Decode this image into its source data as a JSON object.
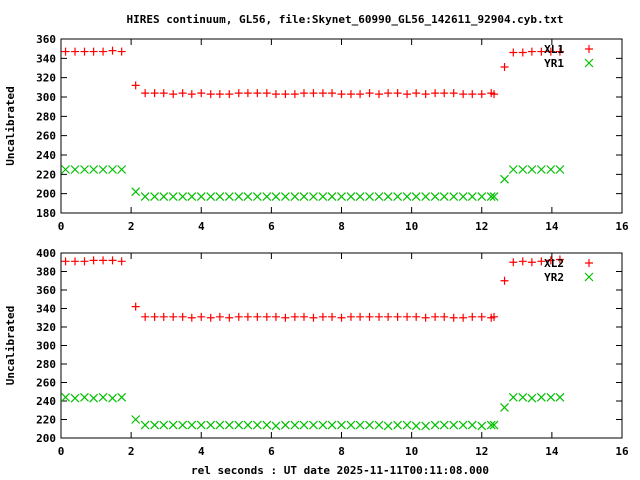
{
  "title": "HIRES continuum, GL56, file:Skynet_60990_GL56_142611_92904.cyb.txt",
  "chart_data": [
    {
      "type": "scatter",
      "ylabel": "Uncalibrated",
      "xlabel": "",
      "xlim": [
        0,
        16
      ],
      "ylim": [
        180,
        360
      ],
      "xticks": [
        "0",
        "2",
        "4",
        "6",
        "8",
        "10",
        "12",
        "14",
        "16"
      ],
      "yticks": [
        "180",
        "200",
        "220",
        "240",
        "260",
        "280",
        "300",
        "320",
        "340",
        "360"
      ],
      "legend_position": "top-right",
      "series": [
        {
          "name": "XL1",
          "color": "#ff0000",
          "marker": "plus",
          "values": [
            347,
            347,
            347,
            347,
            347,
            348,
            347,
            312,
            304,
            304,
            304,
            303,
            304,
            303,
            304,
            303,
            303,
            303,
            304,
            304,
            304,
            304,
            303,
            303,
            303,
            304,
            304,
            304,
            304,
            303,
            303,
            303,
            304,
            303,
            304,
            304,
            303,
            304,
            303,
            304,
            304,
            304,
            303,
            303,
            303,
            304,
            303,
            331,
            346,
            346,
            347,
            347,
            347,
            347
          ]
        },
        {
          "name": "YR1",
          "color": "#00c000",
          "marker": "cross",
          "values": [
            225,
            225,
            225,
            225,
            225,
            225,
            225,
            202,
            197,
            197,
            197,
            197,
            197,
            197,
            197,
            197,
            197,
            197,
            197,
            197,
            197,
            197,
            197,
            197,
            197,
            197,
            197,
            197,
            197,
            197,
            197,
            197,
            197,
            197,
            197,
            197,
            197,
            197,
            197,
            197,
            197,
            197,
            197,
            197,
            197,
            197,
            197,
            215,
            225,
            225,
            225,
            225,
            225,
            225
          ]
        }
      ]
    },
    {
      "type": "scatter",
      "ylabel": "Uncalibrated",
      "xlabel": "rel seconds : UT date 2025-11-11T00:11:08.000",
      "xlim": [
        0,
        16
      ],
      "ylim": [
        200,
        400
      ],
      "xticks": [
        "0",
        "2",
        "4",
        "6",
        "8",
        "10",
        "12",
        "14",
        "16"
      ],
      "yticks": [
        "200",
        "220",
        "240",
        "260",
        "280",
        "300",
        "320",
        "340",
        "360",
        "380",
        "400"
      ],
      "legend_position": "top-right",
      "series": [
        {
          "name": "XL2",
          "color": "#ff0000",
          "marker": "plus",
          "values": [
            391,
            391,
            391,
            392,
            392,
            392,
            391,
            342,
            331,
            331,
            331,
            331,
            331,
            330,
            331,
            330,
            331,
            330,
            331,
            331,
            331,
            331,
            331,
            330,
            331,
            331,
            330,
            331,
            331,
            330,
            331,
            331,
            331,
            331,
            331,
            331,
            331,
            331,
            330,
            331,
            331,
            330,
            330,
            331,
            331,
            330,
            331,
            370,
            390,
            391,
            390,
            391,
            392,
            393
          ]
        },
        {
          "name": "YR2",
          "color": "#00c000",
          "marker": "cross",
          "values": [
            244,
            243,
            244,
            243,
            244,
            243,
            244,
            220,
            214,
            214,
            214,
            214,
            214,
            214,
            214,
            214,
            214,
            214,
            214,
            214,
            214,
            214,
            213,
            214,
            214,
            214,
            214,
            214,
            214,
            214,
            214,
            214,
            214,
            214,
            213,
            214,
            214,
            213,
            213,
            214,
            214,
            214,
            214,
            214,
            213,
            214,
            214,
            233,
            244,
            244,
            243,
            244,
            244,
            244
          ]
        }
      ]
    }
  ],
  "x": [
    0.13,
    0.4,
    0.67,
    0.93,
    1.2,
    1.47,
    1.73,
    2.13,
    2.4,
    2.67,
    2.93,
    3.2,
    3.47,
    3.73,
    4.0,
    4.27,
    4.53,
    4.8,
    5.07,
    5.33,
    5.6,
    5.87,
    6.13,
    6.4,
    6.67,
    6.93,
    7.2,
    7.47,
    7.73,
    8.0,
    8.27,
    8.53,
    8.8,
    9.07,
    9.33,
    9.6,
    9.87,
    10.13,
    10.4,
    10.67,
    10.93,
    11.2,
    11.47,
    11.73,
    12.0,
    12.27,
    12.35,
    12.65,
    12.9,
    13.17,
    13.43,
    13.7,
    13.97,
    14.23
  ]
}
